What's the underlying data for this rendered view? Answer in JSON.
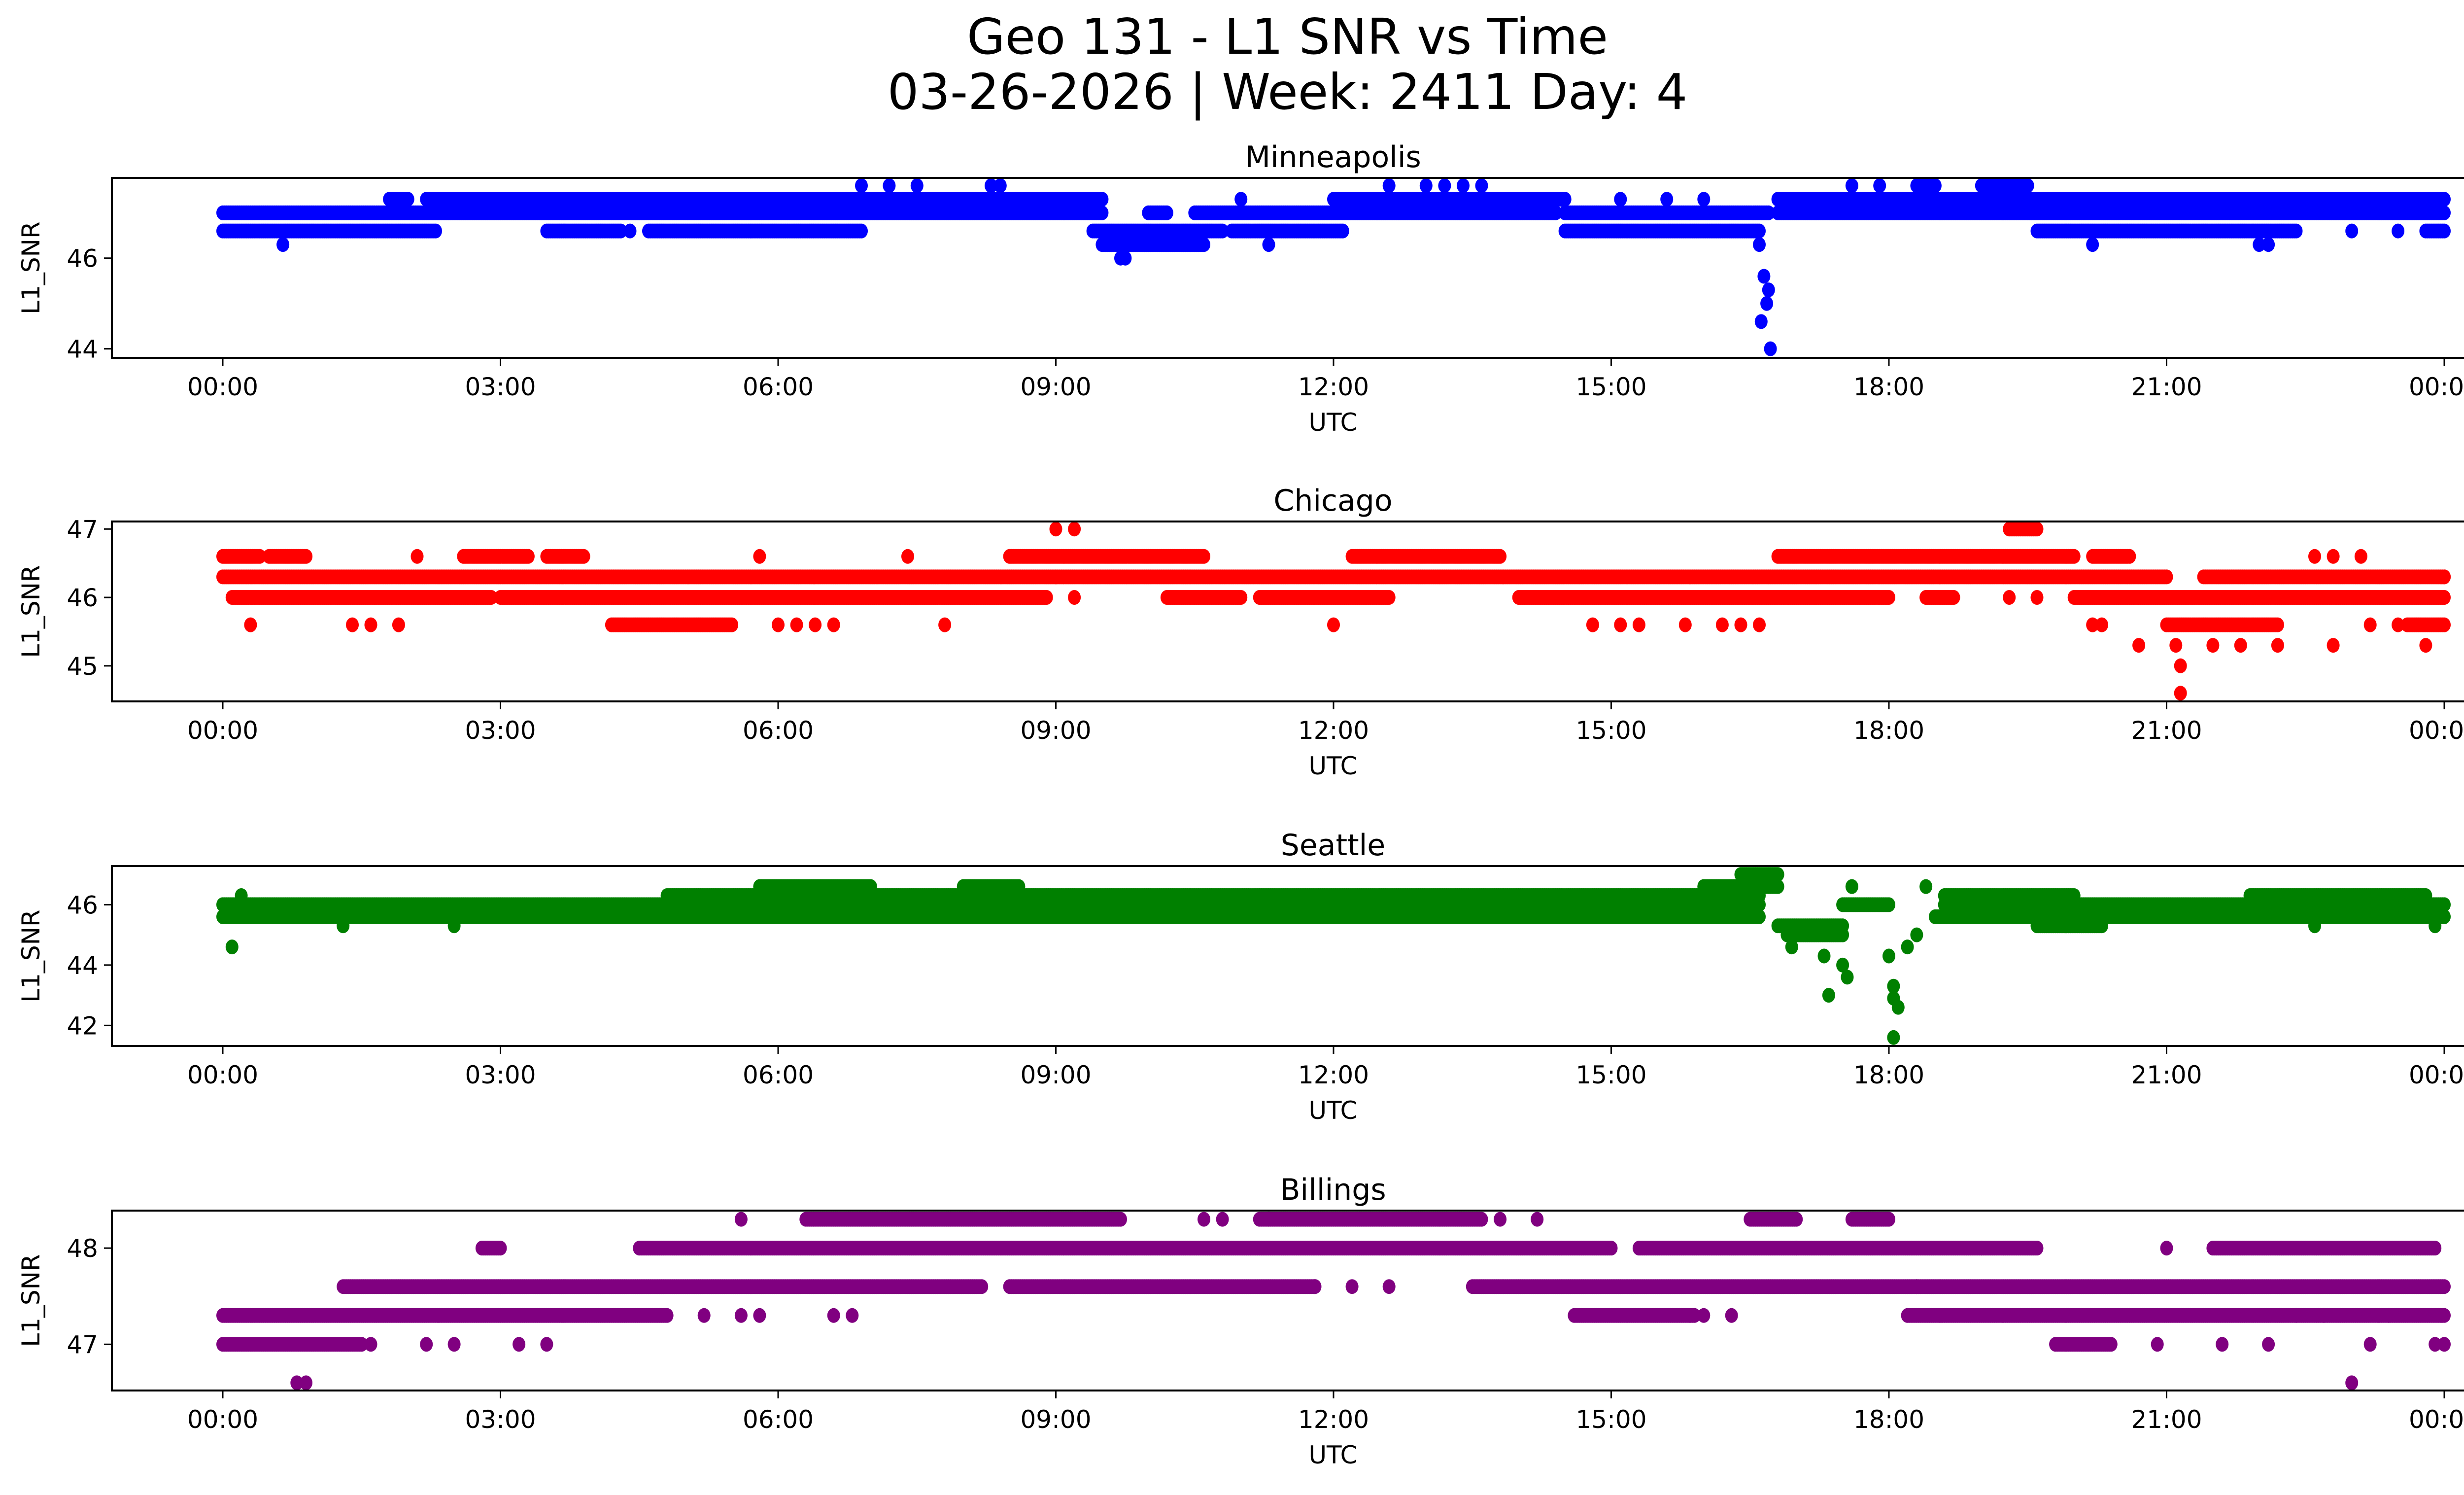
{
  "figure": {
    "title_line1": "Geo 131 - L1 SNR vs Time",
    "title_line2": "03-26-2026 | Week: 2411 Day: 4"
  },
  "chart_data": [
    {
      "type": "scatter",
      "title": "Minneapolis",
      "xlabel": "UTC",
      "ylabel": "L1_SNR",
      "color": "#0000ff",
      "xlim_hours": [
        -0.4,
        24.4
      ],
      "ylim": [
        43.8,
        47.77
      ],
      "yticks": [
        44,
        46
      ],
      "xticks": [
        "00:00",
        "03:00",
        "06:00",
        "09:00",
        "12:00",
        "15:00",
        "18:00",
        "21:00",
        "00:00"
      ],
      "grid": false,
      "segments": [
        [
          47.0,
          0.0,
          9.5
        ],
        [
          46.6,
          0.0,
          2.3
        ],
        [
          47.3,
          1.8,
          2.0
        ],
        [
          47.3,
          2.2,
          9.5
        ],
        [
          46.6,
          3.5,
          4.3
        ],
        [
          46.6,
          4.6,
          6.9
        ],
        [
          46.6,
          9.4,
          10.8
        ],
        [
          46.3,
          9.5,
          10.6
        ],
        [
          47.0,
          10.0,
          10.2
        ],
        [
          47.0,
          10.5,
          14.4
        ],
        [
          47.3,
          12.0,
          14.5
        ],
        [
          46.6,
          10.9,
          12.1
        ],
        [
          46.6,
          14.5,
          16.6
        ],
        [
          47.0,
          14.5,
          16.7
        ],
        [
          47.3,
          16.8,
          24.0
        ],
        [
          47.0,
          16.8,
          24.0
        ],
        [
          46.6,
          19.6,
          22.4
        ],
        [
          46.6,
          23.8,
          24.0
        ],
        [
          47.6,
          18.3,
          18.5
        ],
        [
          47.6,
          19.0,
          19.5
        ]
      ],
      "points": [
        [
          0.65,
          46.3
        ],
        [
          4.4,
          46.6
        ],
        [
          6.9,
          47.6
        ],
        [
          7.2,
          47.6
        ],
        [
          7.5,
          47.6
        ],
        [
          8.3,
          47.6
        ],
        [
          8.4,
          47.6
        ],
        [
          9.7,
          46.0
        ],
        [
          9.75,
          46.0
        ],
        [
          11.0,
          47.3
        ],
        [
          11.3,
          46.3
        ],
        [
          12.6,
          47.6
        ],
        [
          13.0,
          47.6
        ],
        [
          13.2,
          47.6
        ],
        [
          13.4,
          47.6
        ],
        [
          13.6,
          47.6
        ],
        [
          14.5,
          47.3
        ],
        [
          15.1,
          47.3
        ],
        [
          15.6,
          47.3
        ],
        [
          16.0,
          47.3
        ],
        [
          16.6,
          46.3
        ],
        [
          16.65,
          45.6
        ],
        [
          16.7,
          45.3
        ],
        [
          16.68,
          45.0
        ],
        [
          16.62,
          44.6
        ],
        [
          16.72,
          44.0
        ],
        [
          17.6,
          47.6
        ],
        [
          17.9,
          47.6
        ],
        [
          20.2,
          46.3
        ],
        [
          22.0,
          46.3
        ],
        [
          22.1,
          46.3
        ],
        [
          23.0,
          46.6
        ],
        [
          23.5,
          46.6
        ]
      ]
    },
    {
      "type": "scatter",
      "title": "Chicago",
      "xlabel": "UTC",
      "ylabel": "L1_SNR",
      "color": "#ff0000",
      "xlim_hours": [
        -0.4,
        24.4
      ],
      "ylim": [
        44.48,
        47.11
      ],
      "yticks": [
        45,
        46,
        47
      ],
      "xticks": [
        "00:00",
        "03:00",
        "06:00",
        "09:00",
        "12:00",
        "15:00",
        "18:00",
        "21:00",
        "00:00"
      ],
      "grid": false,
      "segments": [
        [
          46.3,
          0.0,
          9.0
        ],
        [
          46.6,
          0.0,
          0.4
        ],
        [
          46.6,
          0.5,
          0.9
        ],
        [
          46.0,
          0.1,
          2.9
        ],
        [
          46.0,
          3.0,
          8.9
        ],
        [
          46.6,
          2.6,
          3.3
        ],
        [
          46.6,
          3.5,
          3.9
        ],
        [
          45.6,
          4.2,
          5.5
        ],
        [
          46.3,
          9.0,
          21.0
        ],
        [
          46.6,
          8.5,
          10.6
        ],
        [
          46.0,
          10.2,
          11.0
        ],
        [
          46.0,
          11.2,
          12.6
        ],
        [
          46.6,
          12.2,
          13.8
        ],
        [
          46.0,
          14.0,
          18.0
        ],
        [
          46.6,
          16.8,
          20.0
        ],
        [
          46.0,
          18.4,
          18.7
        ],
        [
          46.0,
          20.0,
          24.0
        ],
        [
          46.3,
          21.4,
          24.0
        ],
        [
          45.6,
          21.0,
          22.2
        ],
        [
          46.6,
          20.2,
          20.6
        ],
        [
          47.0,
          19.3,
          19.6
        ],
        [
          45.6,
          23.6,
          24.0
        ]
      ],
      "points": [
        [
          0.3,
          45.6
        ],
        [
          1.4,
          45.6
        ],
        [
          1.6,
          45.6
        ],
        [
          1.9,
          45.6
        ],
        [
          2.1,
          46.6
        ],
        [
          5.8,
          46.6
        ],
        [
          6.0,
          45.6
        ],
        [
          6.2,
          45.6
        ],
        [
          6.4,
          45.6
        ],
        [
          6.6,
          45.6
        ],
        [
          7.8,
          45.6
        ],
        [
          7.4,
          46.6
        ],
        [
          9.0,
          47.0
        ],
        [
          9.2,
          47.0
        ],
        [
          9.2,
          46.0
        ],
        [
          12.0,
          45.6
        ],
        [
          14.8,
          45.6
        ],
        [
          15.1,
          45.6
        ],
        [
          15.3,
          45.6
        ],
        [
          15.8,
          45.6
        ],
        [
          16.2,
          45.6
        ],
        [
          16.4,
          45.6
        ],
        [
          16.6,
          45.6
        ],
        [
          19.3,
          46.0
        ],
        [
          19.6,
          46.0
        ],
        [
          20.2,
          45.6
        ],
        [
          20.3,
          45.6
        ],
        [
          20.7,
          45.3
        ],
        [
          21.1,
          45.3
        ],
        [
          21.15,
          45.0
        ],
        [
          21.15,
          44.6
        ],
        [
          21.5,
          45.3
        ],
        [
          21.8,
          45.3
        ],
        [
          22.2,
          45.3
        ],
        [
          22.6,
          46.6
        ],
        [
          22.8,
          46.6
        ],
        [
          22.8,
          45.3
        ],
        [
          23.1,
          46.6
        ],
        [
          23.2,
          45.6
        ],
        [
          23.5,
          45.6
        ],
        [
          23.8,
          45.3
        ],
        [
          24.0,
          46.3
        ]
      ]
    },
    {
      "type": "scatter",
      "title": "Seattle",
      "xlabel": "UTC",
      "ylabel": "L1_SNR",
      "color": "#008000",
      "xlim_hours": [
        -0.4,
        24.4
      ],
      "ylim": [
        41.32,
        47.28
      ],
      "yticks": [
        42,
        44,
        46
      ],
      "xticks": [
        "00:00",
        "03:00",
        "06:00",
        "09:00",
        "12:00",
        "15:00",
        "18:00",
        "21:00",
        "00:00"
      ],
      "grid": false,
      "segments": [
        [
          46.0,
          0.0,
          16.6
        ],
        [
          45.6,
          0.0,
          16.6
        ],
        [
          46.3,
          4.8,
          16.6
        ],
        [
          46.6,
          5.8,
          7.0
        ],
        [
          46.6,
          8.0,
          8.6
        ],
        [
          46.6,
          16.0,
          16.8
        ],
        [
          47.0,
          16.4,
          16.8
        ],
        [
          45.3,
          16.8,
          17.5
        ],
        [
          45.0,
          16.9,
          17.5
        ],
        [
          46.0,
          17.5,
          18.0
        ],
        [
          46.0,
          18.6,
          24.0
        ],
        [
          45.6,
          18.5,
          24.0
        ],
        [
          46.3,
          18.6,
          20.0
        ],
        [
          45.3,
          19.6,
          20.3
        ],
        [
          46.3,
          21.9,
          23.8
        ]
      ],
      "points": [
        [
          0.1,
          44.6
        ],
        [
          0.2,
          46.3
        ],
        [
          1.3,
          45.3
        ],
        [
          2.5,
          45.3
        ],
        [
          16.95,
          44.6
        ],
        [
          17.3,
          44.3
        ],
        [
          17.35,
          43.0
        ],
        [
          17.5,
          44.0
        ],
        [
          17.55,
          43.6
        ],
        [
          17.6,
          46.6
        ],
        [
          18.0,
          44.3
        ],
        [
          18.05,
          43.3
        ],
        [
          18.05,
          42.9
        ],
        [
          18.1,
          42.6
        ],
        [
          18.05,
          41.6
        ],
        [
          18.2,
          44.6
        ],
        [
          18.3,
          45.0
        ],
        [
          18.4,
          46.6
        ],
        [
          22.6,
          45.3
        ],
        [
          23.9,
          45.3
        ]
      ]
    },
    {
      "type": "scatter",
      "title": "Billings",
      "xlabel": "UTC",
      "ylabel": "L1_SNR",
      "color": "#800080",
      "xlim_hours": [
        -0.4,
        24.4
      ],
      "ylim": [
        46.52,
        48.39
      ],
      "yticks": [
        47,
        48
      ],
      "xticks": [
        "00:00",
        "03:00",
        "06:00",
        "09:00",
        "12:00",
        "15:00",
        "18:00",
        "21:00",
        "00:00"
      ],
      "grid": false,
      "segments": [
        [
          47.3,
          0.0,
          4.8
        ],
        [
          47.0,
          0.0,
          1.5
        ],
        [
          47.6,
          1.3,
          8.2
        ],
        [
          48.0,
          2.8,
          3.0
        ],
        [
          48.0,
          4.5,
          15.0
        ],
        [
          48.3,
          6.3,
          9.7
        ],
        [
          47.6,
          8.5,
          11.8
        ],
        [
          48.3,
          11.2,
          13.6
        ],
        [
          47.6,
          13.5,
          18.3
        ],
        [
          48.0,
          15.3,
          17.0
        ],
        [
          48.0,
          17.0,
          19.6
        ],
        [
          47.3,
          14.6,
          15.9
        ],
        [
          48.3,
          16.5,
          17.0
        ],
        [
          47.6,
          18.3,
          24.0
        ],
        [
          47.3,
          18.2,
          24.0
        ],
        [
          48.0,
          21.5,
          23.9
        ],
        [
          48.3,
          17.6,
          18.0
        ],
        [
          47.0,
          19.8,
          20.4
        ]
      ],
      "points": [
        [
          0.8,
          46.6
        ],
        [
          0.9,
          46.6
        ],
        [
          1.6,
          47.0
        ],
        [
          2.2,
          47.0
        ],
        [
          2.5,
          47.0
        ],
        [
          3.2,
          47.0
        ],
        [
          3.5,
          47.0
        ],
        [
          5.6,
          48.3
        ],
        [
          5.2,
          47.3
        ],
        [
          5.6,
          47.3
        ],
        [
          5.8,
          47.3
        ],
        [
          6.6,
          47.3
        ],
        [
          6.8,
          47.3
        ],
        [
          10.6,
          48.3
        ],
        [
          10.8,
          48.3
        ],
        [
          11.3,
          48.3
        ],
        [
          11.8,
          47.6
        ],
        [
          12.2,
          47.6
        ],
        [
          12.6,
          47.6
        ],
        [
          13.8,
          48.3
        ],
        [
          14.2,
          48.3
        ],
        [
          16.0,
          47.3
        ],
        [
          16.3,
          47.3
        ],
        [
          19.0,
          48.0
        ],
        [
          20.9,
          47.0
        ],
        [
          21.0,
          48.0
        ],
        [
          21.6,
          47.0
        ],
        [
          22.1,
          47.0
        ],
        [
          22.4,
          47.3
        ],
        [
          22.7,
          47.3
        ],
        [
          23.0,
          46.6
        ],
        [
          23.2,
          47.0
        ],
        [
          23.4,
          47.3
        ],
        [
          23.9,
          47.0
        ],
        [
          24.0,
          47.0
        ]
      ]
    }
  ]
}
